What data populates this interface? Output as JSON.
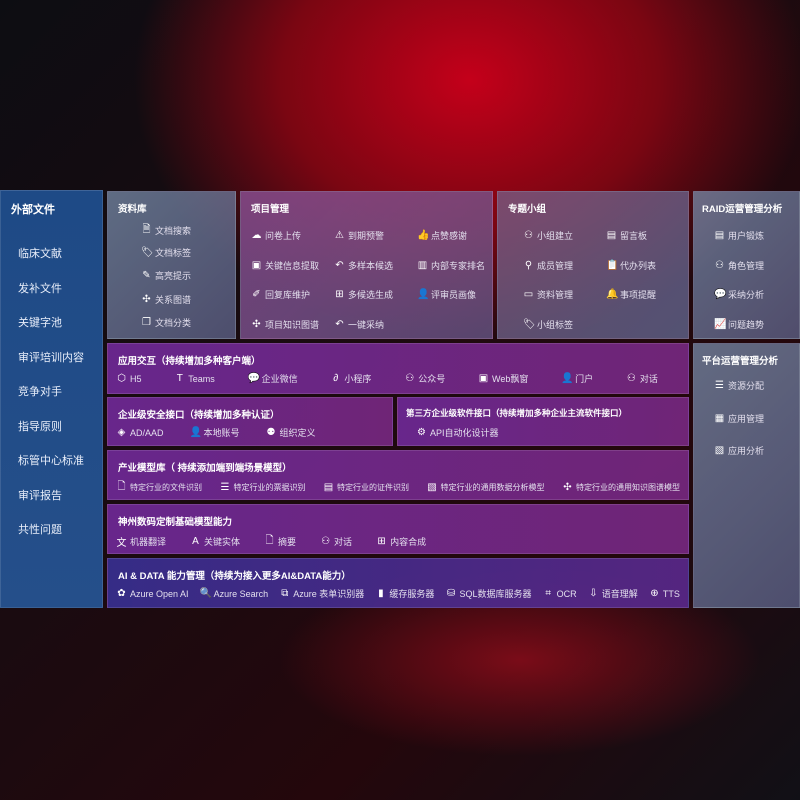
{
  "sidebar": {
    "title": "外部文件",
    "items": [
      "临床文献",
      "发补文件",
      "关键字池",
      "审评培训内容",
      "竞争对手",
      "指导原则",
      "标管中心标准",
      "审评报告",
      "共性问题"
    ]
  },
  "library": {
    "title": "资料库",
    "items": [
      {
        "icon": "doc-search-icon",
        "label": "文档搜索"
      },
      {
        "icon": "tag-icon",
        "label": "文档标签"
      },
      {
        "icon": "pen-icon",
        "label": "高亮提示"
      },
      {
        "icon": "graph-icon",
        "label": "关系图谱"
      },
      {
        "icon": "doc-copy-icon",
        "label": "文档分类"
      }
    ]
  },
  "project": {
    "title": "项目管理",
    "items": [
      {
        "icon": "cloud-upload-icon",
        "label": "问卷上传"
      },
      {
        "icon": "alarm-icon",
        "label": "到期预警"
      },
      {
        "icon": "thumbs-up-icon",
        "label": "点赞感谢"
      },
      {
        "icon": "window-icon",
        "label": "关键信息提取"
      },
      {
        "icon": "reply-icon",
        "label": "多样本候选"
      },
      {
        "icon": "ranking-icon",
        "label": "内部专家排名"
      },
      {
        "icon": "edit-icon",
        "label": "回复库维护"
      },
      {
        "icon": "puzzle-icon",
        "label": "多候选生成"
      },
      {
        "icon": "user-icon",
        "label": "评审员画像"
      },
      {
        "icon": "graph-icon",
        "label": "项目知识图谱"
      },
      {
        "icon": "reply-icon",
        "label": "一键采纳"
      }
    ]
  },
  "group": {
    "title": "专题小组",
    "items": [
      {
        "icon": "group-icon",
        "label": "小组建立"
      },
      {
        "icon": "bbs-icon",
        "label": "留言板"
      },
      {
        "icon": "user-add-icon",
        "label": "成员管理"
      },
      {
        "icon": "clipboard-icon",
        "label": "代办列表"
      },
      {
        "icon": "folder-icon",
        "label": "资料管理"
      },
      {
        "icon": "bell-icon",
        "label": "事项提醒"
      },
      {
        "icon": "tag-icon",
        "label": "小组标签"
      }
    ]
  },
  "raid": {
    "title": "RAID运营管理分析",
    "items": [
      {
        "icon": "id-card-icon",
        "label": "用户锻炼"
      },
      {
        "icon": "group-icon",
        "label": "角色管理"
      },
      {
        "icon": "qa-icon",
        "label": "采纳分析"
      },
      {
        "icon": "trend-icon",
        "label": "问题趋势"
      }
    ]
  },
  "platform": {
    "title": "平台运营管理分析",
    "items": [
      {
        "icon": "list-icon",
        "label": "资源分配"
      },
      {
        "icon": "apps-icon",
        "label": "应用管理"
      },
      {
        "icon": "chart-icon",
        "label": "应用分析"
      }
    ]
  },
  "app": {
    "title": "应用交互（持续增加多种客户端）",
    "items": [
      {
        "icon": "h5-icon",
        "label": "H5"
      },
      {
        "icon": "teams-icon",
        "label": "Teams"
      },
      {
        "icon": "wechat-icon",
        "label": "企业微信"
      },
      {
        "icon": "miniprogram-icon",
        "label": "小程序"
      },
      {
        "icon": "group-icon",
        "label": "公众号"
      },
      {
        "icon": "window-icon",
        "label": "Web飘窗"
      },
      {
        "icon": "portal-icon",
        "label": "门户"
      },
      {
        "icon": "chat-icon",
        "label": "对话"
      }
    ]
  },
  "security": {
    "title": "企业级安全接口（持续增加多种认证）",
    "items": [
      {
        "icon": "diamond-icon",
        "label": "AD/AAD"
      },
      {
        "icon": "user-lock-icon",
        "label": "本地账号"
      },
      {
        "icon": "org-icon",
        "label": "组织定义"
      }
    ]
  },
  "thirdparty": {
    "title": "第三方企业级软件接口（持续增加多种企业主流软件接口）",
    "items": [
      {
        "icon": "gear-icon",
        "label": "API自动化设计器"
      }
    ]
  },
  "industry": {
    "title": "产业模型库（ 持续添加端到端场景模型）",
    "items": [
      {
        "icon": "doc-icon",
        "label": "特定行业的文件识别"
      },
      {
        "icon": "receipt-icon",
        "label": "特定行业的票据识别"
      },
      {
        "icon": "id-card-icon",
        "label": "特定行业的证件识别"
      },
      {
        "icon": "chart-icon",
        "label": "特定行业的通用数据分析模型"
      },
      {
        "icon": "graph-icon",
        "label": "特定行业的通用知识图谱模型"
      }
    ]
  },
  "base": {
    "title": "神州数码定制基础模型能力",
    "items": [
      {
        "icon": "translate-icon",
        "label": "机器翻译"
      },
      {
        "icon": "entity-icon",
        "label": "关键实体"
      },
      {
        "icon": "doc-icon",
        "label": "摘要"
      },
      {
        "icon": "chat-icon",
        "label": "对话"
      },
      {
        "icon": "puzzle-icon",
        "label": "内容合成"
      }
    ]
  },
  "ai": {
    "title": "AI & DATA 能力管理（持续为接入更多AI&DATA能力）",
    "items": [
      {
        "icon": "openai-icon",
        "label": "Azure Open AI"
      },
      {
        "icon": "search-doc-icon",
        "label": "Azure Search"
      },
      {
        "icon": "form-icon",
        "label": "Azure 表单识别器"
      },
      {
        "icon": "cache-icon",
        "label": "缓存服务器"
      },
      {
        "icon": "database-icon",
        "label": "SQL数据库服务器"
      },
      {
        "icon": "ocr-icon",
        "label": "OCR"
      },
      {
        "icon": "voice-icon",
        "label": "语音理解"
      },
      {
        "icon": "tts-icon",
        "label": "TTS"
      }
    ]
  }
}
